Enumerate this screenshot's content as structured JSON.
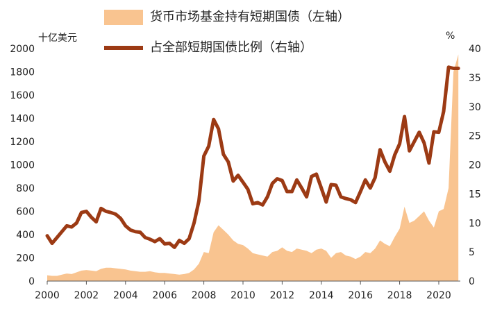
{
  "chart_data": {
    "type": "area+line",
    "title": "",
    "left_unit": "十亿美元",
    "right_unit": "%",
    "x_ticks": [
      "2000",
      "2002",
      "2004",
      "2006",
      "2008",
      "2010",
      "2012",
      "2014",
      "2016",
      "2018",
      "2020"
    ],
    "y_left_ticks": [
      0,
      200,
      400,
      600,
      800,
      1000,
      1200,
      1400,
      1600,
      1800,
      2000
    ],
    "y_right_ticks": [
      0,
      5,
      10,
      15,
      20,
      25,
      30,
      35,
      40
    ],
    "x_range": [
      2000,
      2021.1
    ],
    "ylim_left": [
      0,
      2000
    ],
    "ylim_right": [
      0,
      40
    ],
    "legend_position": "top",
    "grid": false,
    "series": [
      {
        "name": "货币市场基金持有短期国债（左轴）",
        "type": "area",
        "axis": "left",
        "color": "#F9C490",
        "x": [
          2000,
          2000.25,
          2000.5,
          2000.75,
          2001,
          2001.25,
          2001.5,
          2001.75,
          2002,
          2002.25,
          2002.5,
          2002.75,
          2003,
          2003.25,
          2003.5,
          2003.75,
          2004,
          2004.25,
          2004.5,
          2004.75,
          2005,
          2005.25,
          2005.5,
          2005.75,
          2006,
          2006.25,
          2006.5,
          2006.75,
          2007,
          2007.25,
          2007.5,
          2007.75,
          2008,
          2008.25,
          2008.5,
          2008.75,
          2009,
          2009.25,
          2009.5,
          2009.75,
          2010,
          2010.25,
          2010.5,
          2010.75,
          2011,
          2011.25,
          2011.5,
          2011.75,
          2012,
          2012.25,
          2012.5,
          2012.75,
          2013,
          2013.25,
          2013.5,
          2013.75,
          2014,
          2014.25,
          2014.5,
          2014.75,
          2015,
          2015.25,
          2015.5,
          2015.75,
          2016,
          2016.25,
          2016.5,
          2016.75,
          2017,
          2017.25,
          2017.5,
          2017.75,
          2018,
          2018.25,
          2018.5,
          2018.75,
          2019,
          2019.25,
          2019.5,
          2019.75,
          2020,
          2020.25,
          2020.5,
          2020.75,
          2021
        ],
        "values": [
          50,
          45,
          45,
          55,
          65,
          60,
          75,
          90,
          95,
          90,
          85,
          105,
          115,
          115,
          110,
          105,
          100,
          90,
          85,
          80,
          80,
          85,
          75,
          70,
          70,
          65,
          60,
          55,
          60,
          70,
          100,
          150,
          250,
          240,
          420,
          480,
          440,
          400,
          350,
          320,
          310,
          280,
          240,
          230,
          220,
          210,
          250,
          260,
          290,
          260,
          250,
          280,
          270,
          260,
          240,
          270,
          280,
          260,
          200,
          240,
          250,
          220,
          210,
          190,
          210,
          250,
          240,
          280,
          350,
          320,
          300,
          380,
          450,
          640,
          500,
          520,
          560,
          600,
          520,
          460,
          600,
          620,
          800,
          1800,
          1950
        ]
      },
      {
        "name": "占全部短期国债比例（右轴）",
        "type": "line",
        "axis": "right",
        "color": "#9C3A14",
        "x": [
          2000,
          2000.25,
          2000.5,
          2000.75,
          2001,
          2001.25,
          2001.5,
          2001.75,
          2002,
          2002.25,
          2002.5,
          2002.75,
          2003,
          2003.25,
          2003.5,
          2003.75,
          2004,
          2004.25,
          2004.5,
          2004.75,
          2005,
          2005.25,
          2005.5,
          2005.75,
          2006,
          2006.25,
          2006.5,
          2006.75,
          2007,
          2007.25,
          2007.5,
          2007.75,
          2008,
          2008.25,
          2008.5,
          2008.75,
          2009,
          2009.25,
          2009.5,
          2009.75,
          2010,
          2010.25,
          2010.5,
          2010.75,
          2011,
          2011.25,
          2011.5,
          2011.75,
          2012,
          2012.25,
          2012.5,
          2012.75,
          2013,
          2013.25,
          2013.5,
          2013.75,
          2014,
          2014.25,
          2014.5,
          2014.75,
          2015,
          2015.25,
          2015.5,
          2015.75,
          2016,
          2016.25,
          2016.5,
          2016.75,
          2017,
          2017.25,
          2017.5,
          2017.75,
          2018,
          2018.25,
          2018.5,
          2018.75,
          2019,
          2019.25,
          2019.5,
          2019.75,
          2020,
          2020.25,
          2020.5,
          2020.75,
          2021
        ],
        "values": [
          7.8,
          6.5,
          7.5,
          8.5,
          9.5,
          9.3,
          10,
          11.8,
          12,
          11,
          10.2,
          12.5,
          12,
          11.8,
          11.5,
          10.8,
          9.5,
          8.8,
          8.5,
          8.4,
          7.5,
          7.2,
          6.8,
          7.3,
          6.4,
          6.5,
          5.8,
          7.0,
          6.5,
          7.3,
          10,
          13.8,
          21.5,
          23.2,
          27.8,
          26.2,
          21.8,
          20.5,
          17.2,
          18.2,
          17,
          15.8,
          13.3,
          13.5,
          13.1,
          14.5,
          16.8,
          17.6,
          17.3,
          15.4,
          15.4,
          17.4,
          16,
          14.5,
          18,
          18.4,
          16,
          13.6,
          16.6,
          16.5,
          14.5,
          14.2,
          14,
          13.5,
          15.4,
          17.4,
          16,
          17.8,
          22.6,
          20.5,
          18.9,
          21.7,
          23.6,
          28.3,
          22.4,
          24,
          25.6,
          23.8,
          20.3,
          25.7,
          25.6,
          29.2,
          36.8,
          36.6,
          36.6
        ]
      }
    ]
  }
}
